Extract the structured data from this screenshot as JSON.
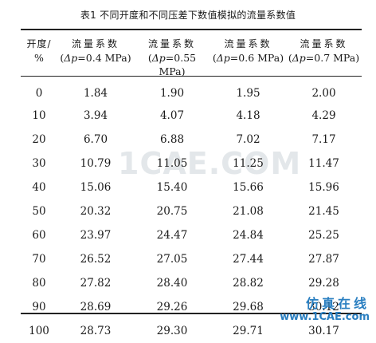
{
  "caption": "表1  不同开度和不同压差下数值模拟的流量系数值",
  "table": {
    "headers": [
      {
        "line1": "开度/",
        "line2": "%"
      },
      {
        "line1": "流量系数",
        "line2_symbol": "Δp",
        "line2_rest": "=0.4 MPa)"
      },
      {
        "line1": "流量系数",
        "line2_symbol": "Δp",
        "line2_rest": "=0.55 MPa)"
      },
      {
        "line1": "流量系数",
        "line2_symbol": "Δp",
        "line2_rest": "=0.6 MPa)"
      },
      {
        "line1": "流量系数",
        "line2_symbol": "Δp",
        "line2_rest": "=0.7 MPa)"
      }
    ],
    "rows": [
      [
        "0",
        "1.84",
        "1.90",
        "1.95",
        "2.00"
      ],
      [
        "10",
        "3.94",
        "4.07",
        "4.18",
        "4.29"
      ],
      [
        "20",
        "6.70",
        "6.88",
        "7.02",
        "7.17"
      ],
      [
        "30",
        "10.79",
        "11.05",
        "11.25",
        "11.47"
      ],
      [
        "40",
        "15.06",
        "15.40",
        "15.66",
        "15.96"
      ],
      [
        "50",
        "20.32",
        "20.75",
        "21.08",
        "21.45"
      ],
      [
        "60",
        "23.97",
        "24.47",
        "24.84",
        "25.25"
      ],
      [
        "70",
        "26.52",
        "27.05",
        "27.44",
        "27.87"
      ],
      [
        "80",
        "27.82",
        "28.40",
        "28.82",
        "29.28"
      ],
      [
        "90",
        "28.69",
        "29.26",
        "29.68",
        "30.12"
      ],
      [
        "100",
        "28.73",
        "29.30",
        "29.71",
        "30.17"
      ]
    ]
  },
  "watermark": "1CAE.COM",
  "brand": {
    "name": "仿真在线",
    "url": "www.1CAE.com",
    "color": "#2a7fc1"
  }
}
